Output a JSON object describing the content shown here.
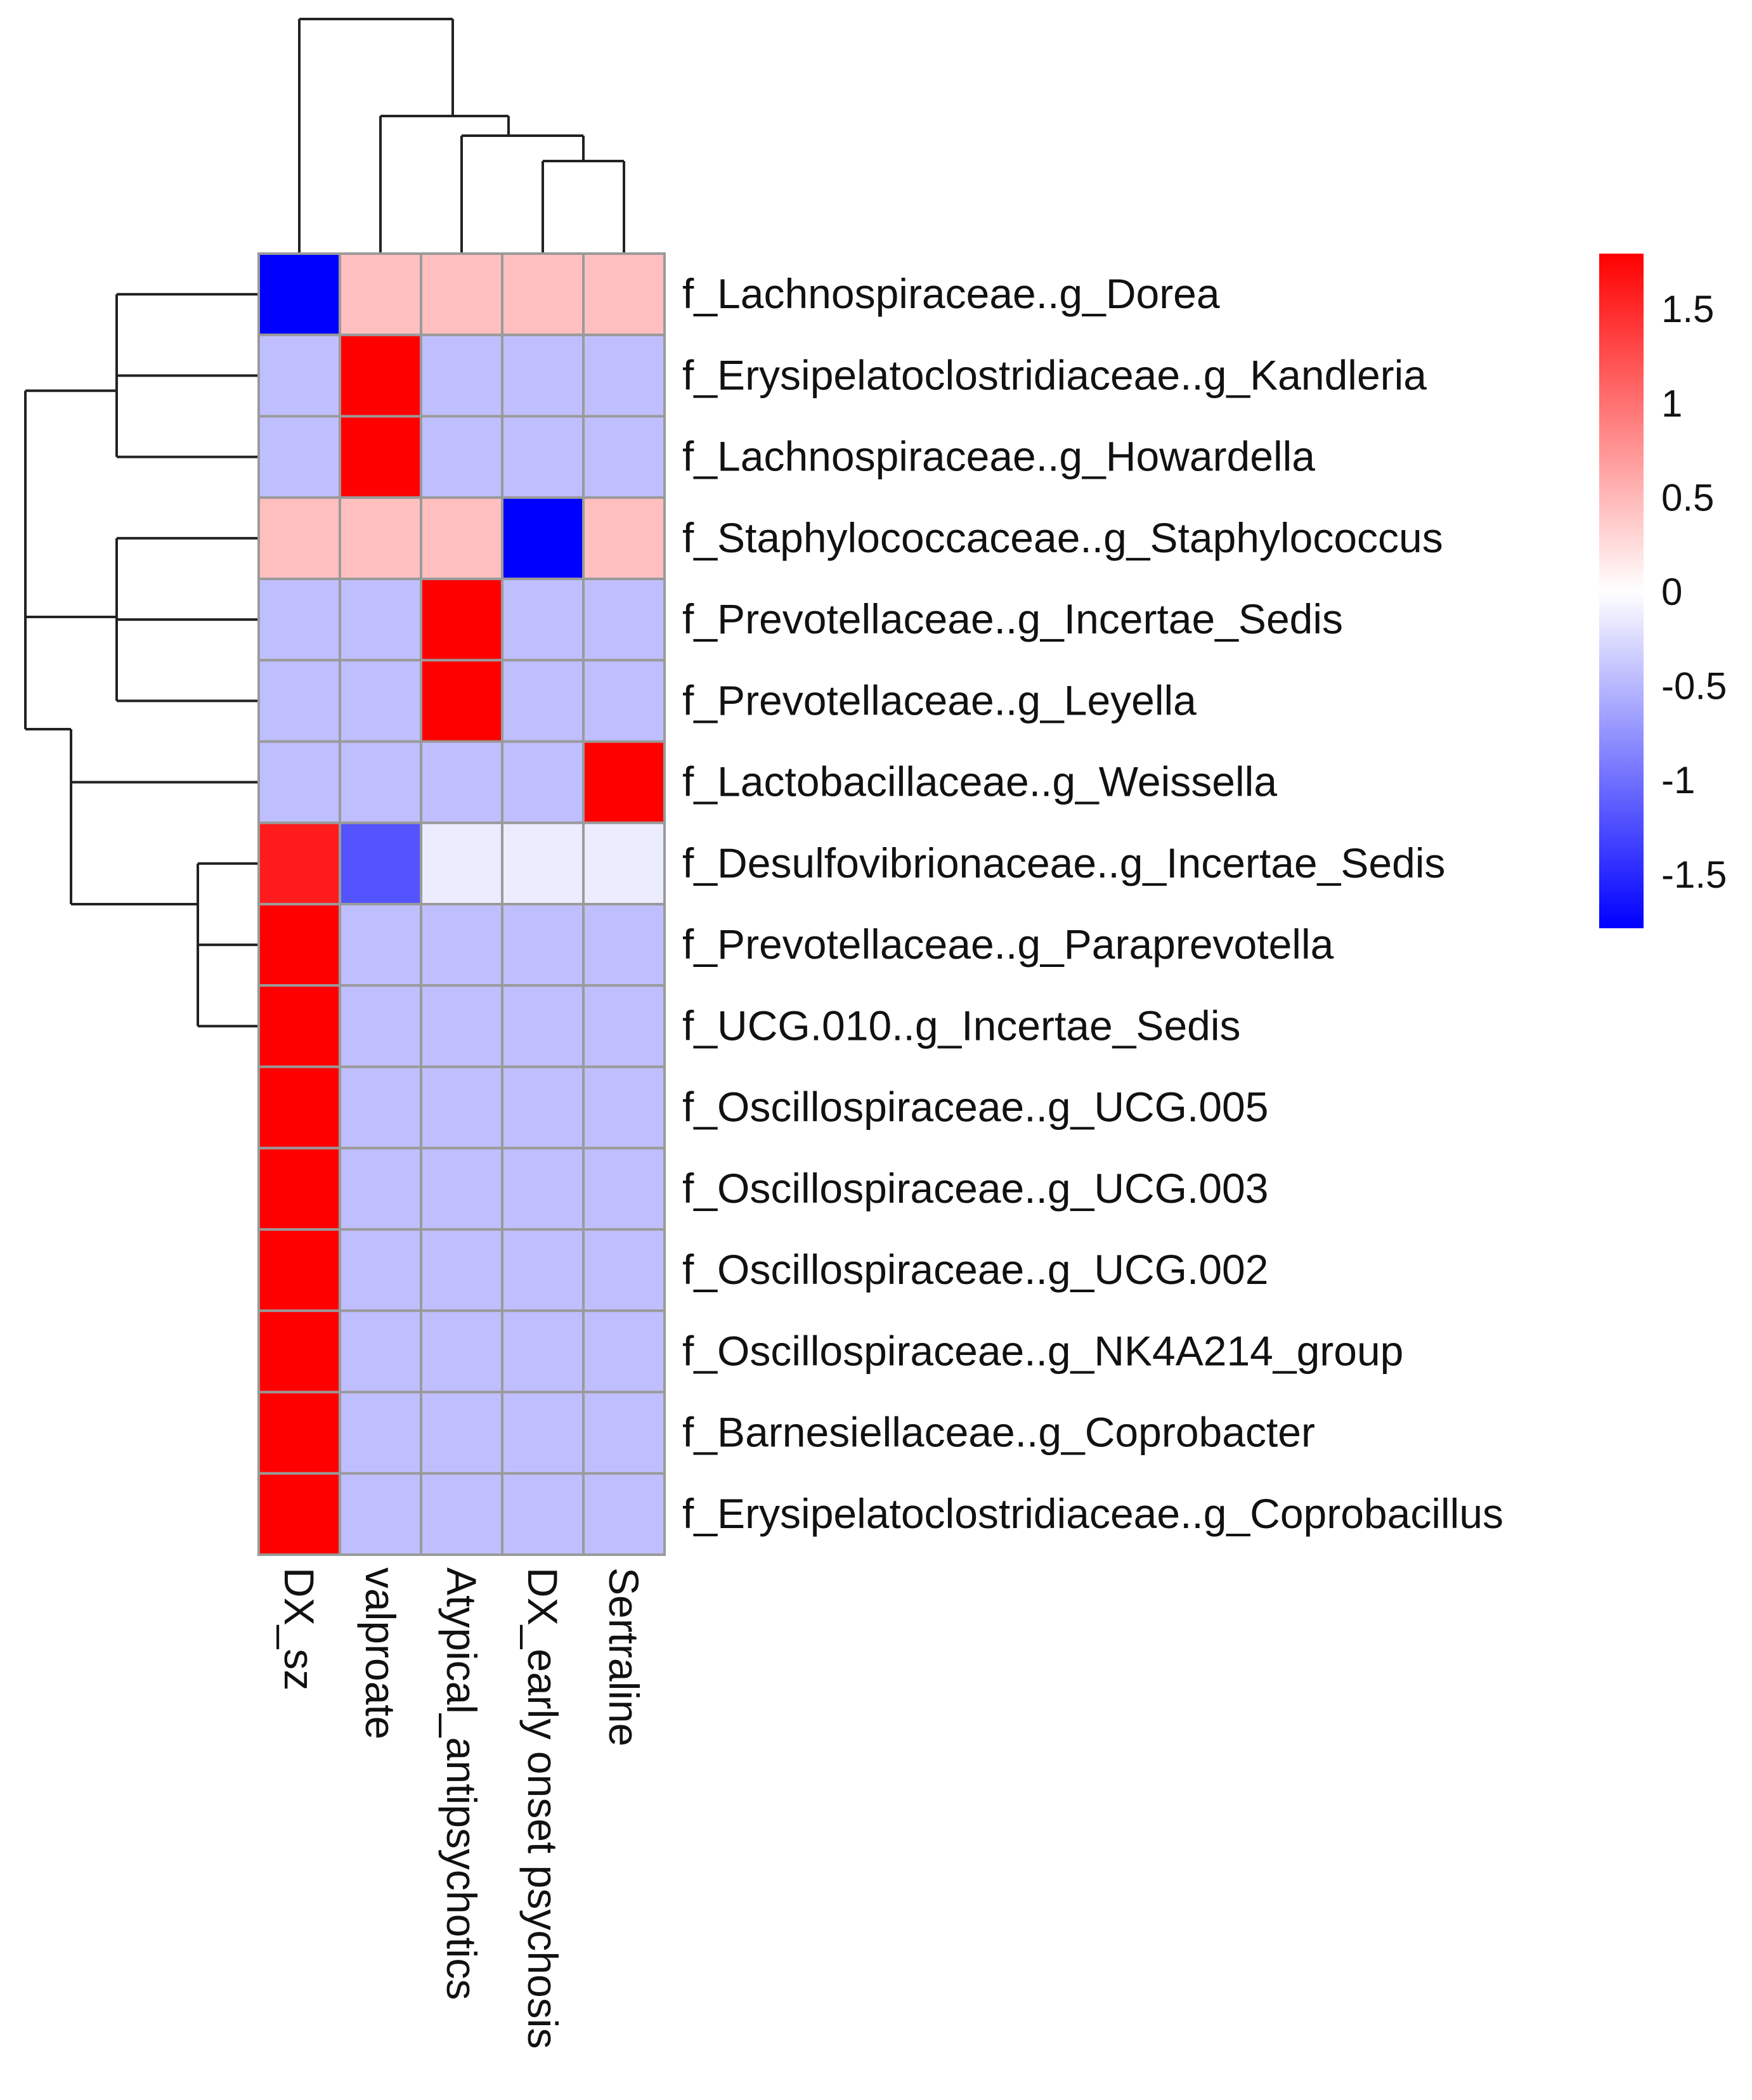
{
  "chart_data": {
    "type": "heatmap",
    "title": "",
    "columns": [
      "DX_sz",
      "valproate",
      "Atypical_antipsychotics",
      "DX_early onset psychosis",
      "Sertraline"
    ],
    "rows": [
      "f_Lachnospiraceae..g_Dorea",
      "f_Erysipelatoclostridiaceae..g_Kandleria",
      "f_Lachnospiraceae..g_Howardella",
      "f_Staphylococcaceae..g_Staphylococcus",
      "f_Prevotellaceae..g_Incertae_Sedis",
      "f_Prevotellaceae..g_Leyella",
      "f_Lactobacillaceae..g_Weissella",
      "f_Desulfovibrionaceae..g_Incertae_Sedis",
      "f_Prevotellaceae..g_Paraprevotella",
      "f_UCG.010..g_Incertae_Sedis",
      "f_Oscillospiraceae..g_UCG.005",
      "f_Oscillospiraceae..g_UCG.003",
      "f_Oscillospiraceae..g_UCG.002",
      "f_Oscillospiraceae..g_NK4A214_group",
      "f_Barnesiellaceae..g_Coprobacter",
      "f_Erysipelatoclostridiaceae..g_Coprobacillus"
    ],
    "values": [
      [
        -1.79,
        0.45,
        0.45,
        0.45,
        0.45
      ],
      [
        -0.45,
        1.79,
        -0.45,
        -0.45,
        -0.45
      ],
      [
        -0.45,
        1.79,
        -0.45,
        -0.45,
        -0.45
      ],
      [
        0.45,
        0.45,
        0.45,
        -1.79,
        0.45
      ],
      [
        -0.45,
        -0.45,
        1.79,
        -0.45,
        -0.45
      ],
      [
        -0.45,
        -0.45,
        1.79,
        -0.45,
        -0.45
      ],
      [
        -0.45,
        -0.45,
        -0.45,
        -0.45,
        1.79
      ],
      [
        1.6,
        -1.2,
        -0.13,
        -0.13,
        -0.13
      ],
      [
        1.79,
        -0.45,
        -0.45,
        -0.45,
        -0.45
      ],
      [
        1.79,
        -0.45,
        -0.45,
        -0.45,
        -0.45
      ],
      [
        1.79,
        -0.45,
        -0.45,
        -0.45,
        -0.45
      ],
      [
        1.79,
        -0.45,
        -0.45,
        -0.45,
        -0.45
      ],
      [
        1.79,
        -0.45,
        -0.45,
        -0.45,
        -0.45
      ],
      [
        1.79,
        -0.45,
        -0.45,
        -0.45,
        -0.45
      ],
      [
        1.79,
        -0.45,
        -0.45,
        -0.45,
        -0.45
      ],
      [
        1.79,
        -0.45,
        -0.45,
        -0.45,
        -0.45
      ]
    ],
    "color_scale": {
      "min": -1.79,
      "max": 1.79,
      "low_color": "#0000ff",
      "mid_color": "#ffffff",
      "high_color": "#ff0000",
      "ticks": [
        1.5,
        1,
        0.5,
        0,
        -0.5,
        -1,
        -1.5
      ],
      "tick_labels": [
        "1.5",
        "1",
        "0.5",
        "0",
        "-0.5",
        "-1",
        "-1.5"
      ]
    },
    "column_dendrogram": "DX_sz separate from (valproate, (Atypical_antipsychotics, (DX_early onset psychosis, Sertraline)))",
    "row_dendrogram": "clustered rows shown as tree on left"
  },
  "colors": {
    "grid": "#9a9a9a",
    "dendrogram": "#222222",
    "text": "#111111"
  }
}
